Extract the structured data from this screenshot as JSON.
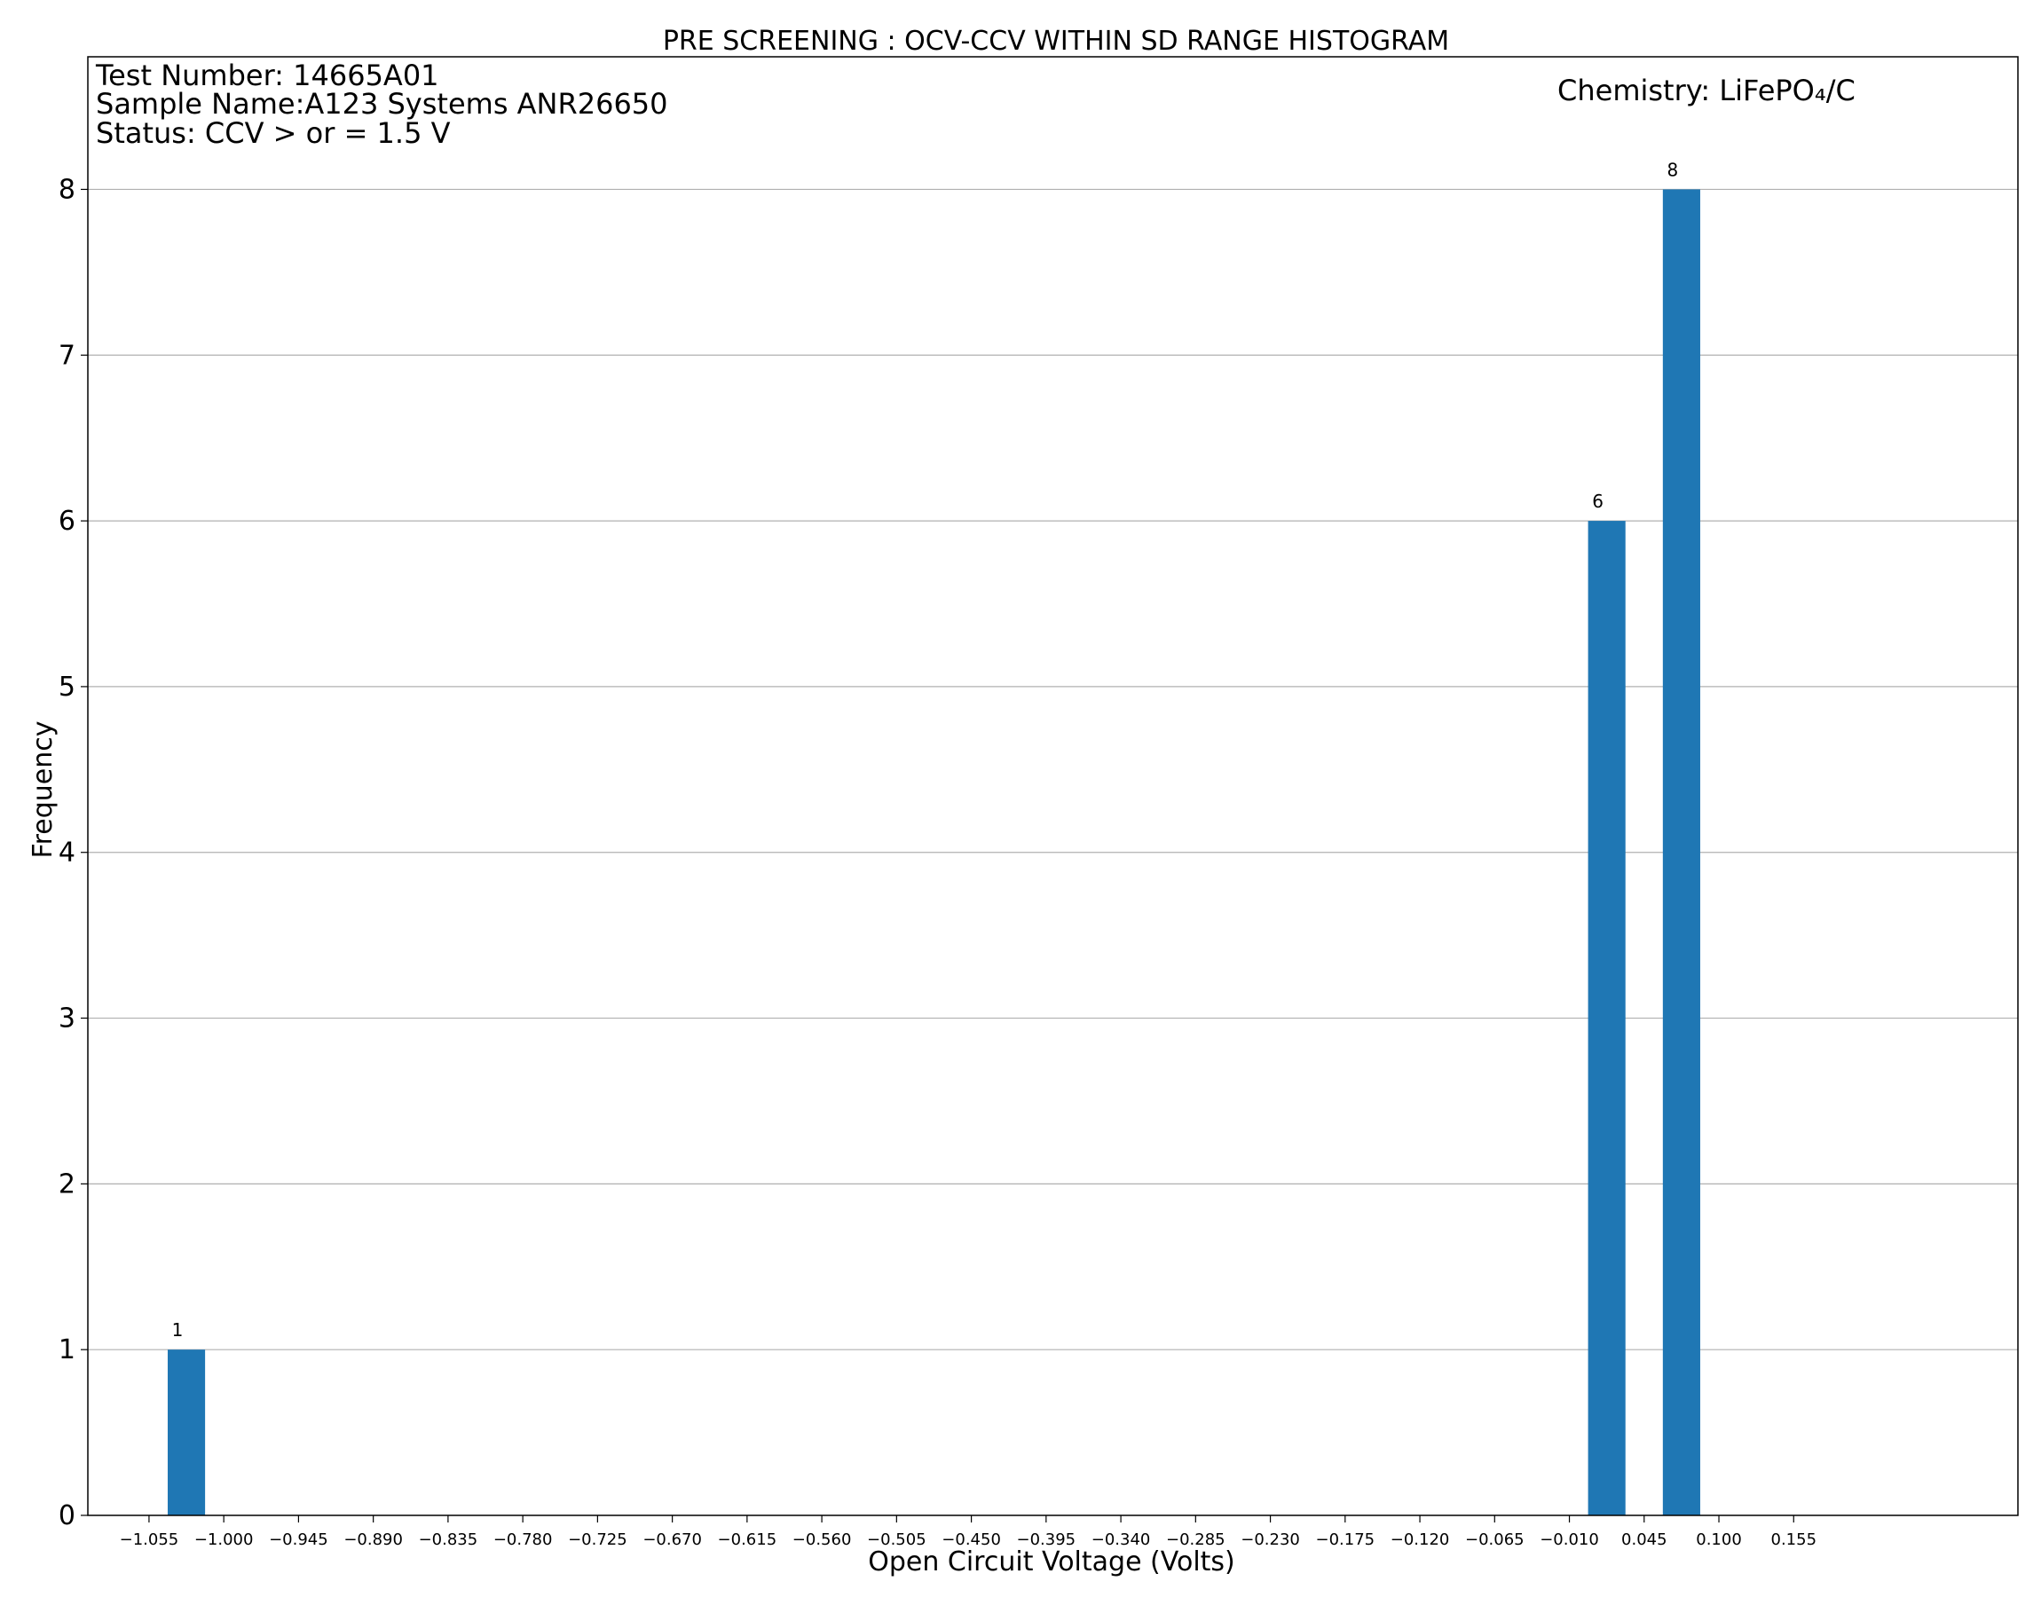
{
  "chart_data": {
    "type": "bar",
    "title": "PRE SCREENING : OCV-CCV WITHIN SD RANGE HISTOGRAM",
    "xlabel": "Open Circuit Voltage (Volts)",
    "ylabel": "Frequency",
    "info_lines": [
      "Test Number: 14665A01",
      "Sample Name:A123 Systems ANR26650",
      "Status: CCV > or = 1.5 V"
    ],
    "chemistry_label": "Chemistry: LiFePO₄/C",
    "xlim": [
      -1.1,
      0.32
    ],
    "ylim": [
      0,
      8.8
    ],
    "x_ticks": [
      -1.055,
      -1.0,
      -0.945,
      -0.89,
      -0.835,
      -0.78,
      -0.725,
      -0.67,
      -0.615,
      -0.56,
      -0.505,
      -0.45,
      -0.395,
      -0.34,
      -0.285,
      -0.23,
      -0.175,
      -0.12,
      -0.065,
      -0.01,
      0.045,
      0.1,
      0.155
    ],
    "x_tick_labels": [
      "−1.055",
      "−1.000",
      "−0.945",
      "−0.890",
      "−0.835",
      "−0.780",
      "−0.725",
      "−0.670",
      "−0.615",
      "−0.560",
      "−0.505",
      "−0.450",
      "−0.395",
      "−0.340",
      "−0.285",
      "−0.230",
      "−0.175",
      "−0.120",
      "−0.065",
      "−0.010",
      "0.045",
      "0.100",
      "0.155"
    ],
    "y_ticks": [
      0,
      1,
      2,
      3,
      4,
      5,
      6,
      7,
      8
    ],
    "bar_width": 0.0275,
    "bars": [
      {
        "x": -1.0275,
        "value": 1,
        "label": "1"
      },
      {
        "x": 0.0175,
        "value": 6,
        "label": "6"
      },
      {
        "x": 0.0725,
        "value": 8,
        "label": "8"
      }
    ],
    "bar_color": "#1f77b4",
    "grid": "horizontal"
  }
}
